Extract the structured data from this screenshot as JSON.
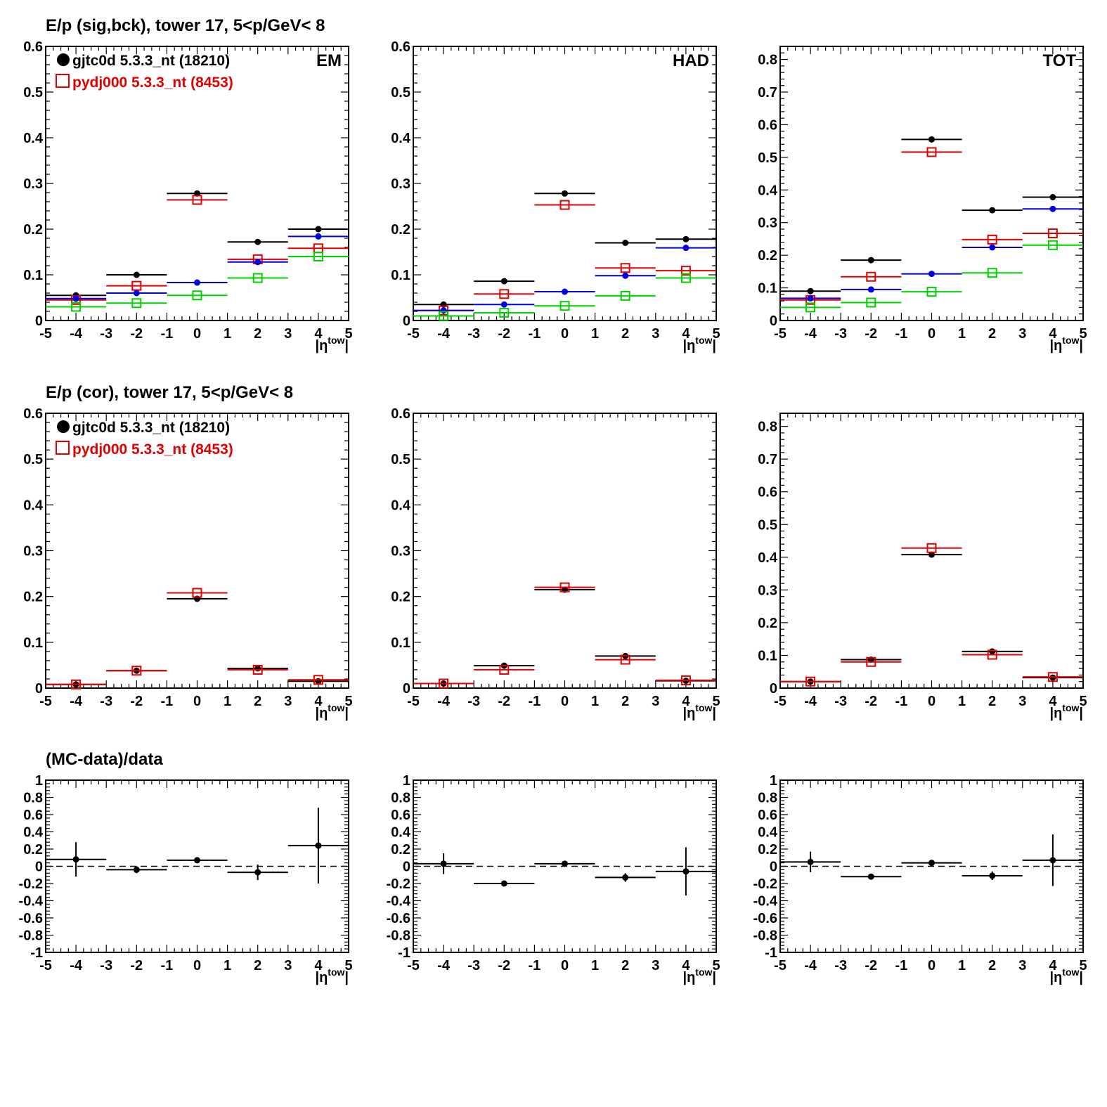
{
  "row_titles": [
    "E/p (sig,bck), tower 17,  5<p/GeV< 8",
    "E/p (cor), tower 17,  5<p/GeV< 8",
    "(MC-data)/data"
  ],
  "legend": {
    "data_label": "gjtc0d 5.3.3_nt (18210)",
    "mc_label": "pydj000 5.3.3_nt (8453)"
  },
  "colors": {
    "data": "#000000",
    "mc": "#e00000",
    "blue": "#0000e0",
    "green": "#00d000"
  },
  "xaxis": {
    "label_main": "|η",
    "label_sup": "tow",
    "label_end": "|",
    "range": [
      -5,
      5
    ],
    "ticks": [
      -5,
      -4,
      -3,
      -2,
      -1,
      0,
      1,
      2,
      3,
      4,
      5
    ]
  },
  "chart_data": [
    {
      "type": "scatter",
      "panel": "sig-bck-em",
      "corner_label": "EM",
      "legend": "top-left",
      "ylim": [
        0,
        0.6
      ],
      "yticks": [
        0,
        0.1,
        0.2,
        0.3,
        0.4,
        0.5,
        0.6
      ],
      "x": [
        -4,
        -2,
        0,
        2,
        4
      ],
      "bin_halfwidth": 1,
      "series": [
        {
          "key": "data",
          "marker": "dot",
          "values": [
            0.055,
            0.1,
            0.278,
            0.172,
            0.2
          ]
        },
        {
          "key": "mc",
          "marker": "square",
          "values": [
            0.045,
            0.076,
            0.264,
            0.134,
            0.158
          ]
        },
        {
          "key": "blue",
          "marker": "dot",
          "values": [
            0.048,
            0.06,
            0.083,
            0.128,
            0.184
          ]
        },
        {
          "key": "green",
          "marker": "square",
          "values": [
            0.03,
            0.038,
            0.055,
            0.093,
            0.14
          ]
        }
      ]
    },
    {
      "type": "scatter",
      "panel": "sig-bck-had",
      "corner_label": "HAD",
      "ylim": [
        0,
        0.6
      ],
      "yticks": [
        0,
        0.1,
        0.2,
        0.3,
        0.4,
        0.5,
        0.6
      ],
      "x": [
        -4,
        -2,
        0,
        2,
        4
      ],
      "bin_halfwidth": 1,
      "series": [
        {
          "key": "data",
          "marker": "dot",
          "values": [
            0.035,
            0.086,
            0.278,
            0.17,
            0.178
          ]
        },
        {
          "key": "mc",
          "marker": "square",
          "values": [
            0.022,
            0.058,
            0.253,
            0.115,
            0.109
          ]
        },
        {
          "key": "blue",
          "marker": "dot",
          "values": [
            0.022,
            0.035,
            0.063,
            0.098,
            0.159
          ]
        },
        {
          "key": "green",
          "marker": "square",
          "values": [
            0.01,
            0.017,
            0.032,
            0.054,
            0.093
          ]
        }
      ]
    },
    {
      "type": "scatter",
      "panel": "sig-bck-tot",
      "corner_label": "TOT",
      "ylim": [
        0,
        0.84
      ],
      "yticks": [
        0,
        0.1,
        0.2,
        0.3,
        0.4,
        0.5,
        0.6,
        0.7,
        0.8
      ],
      "x": [
        -4,
        -2,
        0,
        2,
        4
      ],
      "bin_halfwidth": 1,
      "series": [
        {
          "key": "data",
          "marker": "dot",
          "values": [
            0.09,
            0.185,
            0.555,
            0.338,
            0.378
          ]
        },
        {
          "key": "mc",
          "marker": "square",
          "values": [
            0.063,
            0.134,
            0.516,
            0.248,
            0.267
          ]
        },
        {
          "key": "blue",
          "marker": "dot",
          "values": [
            0.068,
            0.095,
            0.143,
            0.224,
            0.342
          ]
        },
        {
          "key": "green",
          "marker": "square",
          "values": [
            0.04,
            0.055,
            0.088,
            0.146,
            0.231
          ]
        }
      ]
    },
    {
      "type": "scatter",
      "panel": "cor-em",
      "corner_label": "",
      "legend": "top-left",
      "ylim": [
        0,
        0.6
      ],
      "yticks": [
        0,
        0.1,
        0.2,
        0.3,
        0.4,
        0.5,
        0.6
      ],
      "x": [
        -4,
        -2,
        0,
        2,
        4
      ],
      "bin_halfwidth": 1,
      "series": [
        {
          "key": "data",
          "marker": "dot",
          "values": [
            0.008,
            0.038,
            0.195,
            0.043,
            0.015
          ]
        },
        {
          "key": "mc",
          "marker": "square",
          "values": [
            0.008,
            0.038,
            0.208,
            0.04,
            0.018
          ]
        }
      ]
    },
    {
      "type": "scatter",
      "panel": "cor-had",
      "corner_label": "",
      "ylim": [
        0,
        0.6
      ],
      "yticks": [
        0,
        0.1,
        0.2,
        0.3,
        0.4,
        0.5,
        0.6
      ],
      "x": [
        -4,
        -2,
        0,
        2,
        4
      ],
      "bin_halfwidth": 1,
      "series": [
        {
          "key": "data",
          "marker": "dot",
          "values": [
            0.01,
            0.049,
            0.215,
            0.07,
            0.016
          ]
        },
        {
          "key": "mc",
          "marker": "square",
          "values": [
            0.01,
            0.04,
            0.22,
            0.062,
            0.017
          ]
        }
      ]
    },
    {
      "type": "scatter",
      "panel": "cor-tot",
      "corner_label": "",
      "ylim": [
        0,
        0.84
      ],
      "yticks": [
        0,
        0.1,
        0.2,
        0.3,
        0.4,
        0.5,
        0.6,
        0.7,
        0.8
      ],
      "x": [
        -4,
        -2,
        0,
        2,
        4
      ],
      "bin_halfwidth": 1,
      "series": [
        {
          "key": "data",
          "marker": "dot",
          "values": [
            0.02,
            0.087,
            0.408,
            0.112,
            0.032
          ]
        },
        {
          "key": "mc",
          "marker": "square",
          "values": [
            0.02,
            0.08,
            0.428,
            0.102,
            0.034
          ]
        }
      ]
    },
    {
      "type": "scatter",
      "panel": "ratio-em",
      "corner_label": "",
      "ref_line": 0,
      "ylim": [
        -1,
        1
      ],
      "yticks": [
        -1,
        -0.8,
        -0.6,
        -0.4,
        -0.2,
        0,
        0.2,
        0.4,
        0.6,
        0.8,
        1
      ],
      "x": [
        -4,
        -2,
        0,
        2,
        4
      ],
      "bin_halfwidth": 1,
      "series": [
        {
          "key": "data",
          "marker": "dot",
          "values": [
            0.08,
            -0.04,
            0.07,
            -0.07,
            0.24
          ],
          "errors": [
            0.2,
            0.04,
            0.02,
            0.09,
            0.44
          ]
        }
      ]
    },
    {
      "type": "scatter",
      "panel": "ratio-had",
      "corner_label": "",
      "ref_line": 0,
      "ylim": [
        -1,
        1
      ],
      "yticks": [
        -1,
        -0.8,
        -0.6,
        -0.4,
        -0.2,
        0,
        0.2,
        0.4,
        0.6,
        0.8,
        1
      ],
      "x": [
        -4,
        -2,
        0,
        2,
        4
      ],
      "bin_halfwidth": 1,
      "series": [
        {
          "key": "data",
          "marker": "dot",
          "values": [
            0.03,
            -0.2,
            0.03,
            -0.13,
            -0.06
          ],
          "errors": [
            0.12,
            0.015,
            0.015,
            0.05,
            0.28
          ]
        }
      ]
    },
    {
      "type": "scatter",
      "panel": "ratio-tot",
      "corner_label": "",
      "ref_line": 0,
      "ylim": [
        -1,
        1
      ],
      "yticks": [
        -1,
        -0.8,
        -0.6,
        -0.4,
        -0.2,
        0,
        0.2,
        0.4,
        0.6,
        0.8,
        1
      ],
      "x": [
        -4,
        -2,
        0,
        2,
        4
      ],
      "bin_halfwidth": 1,
      "series": [
        {
          "key": "data",
          "marker": "dot",
          "values": [
            0.05,
            -0.12,
            0.04,
            -0.11,
            0.07
          ],
          "errors": [
            0.12,
            0.02,
            0.015,
            0.05,
            0.3
          ]
        }
      ]
    }
  ]
}
